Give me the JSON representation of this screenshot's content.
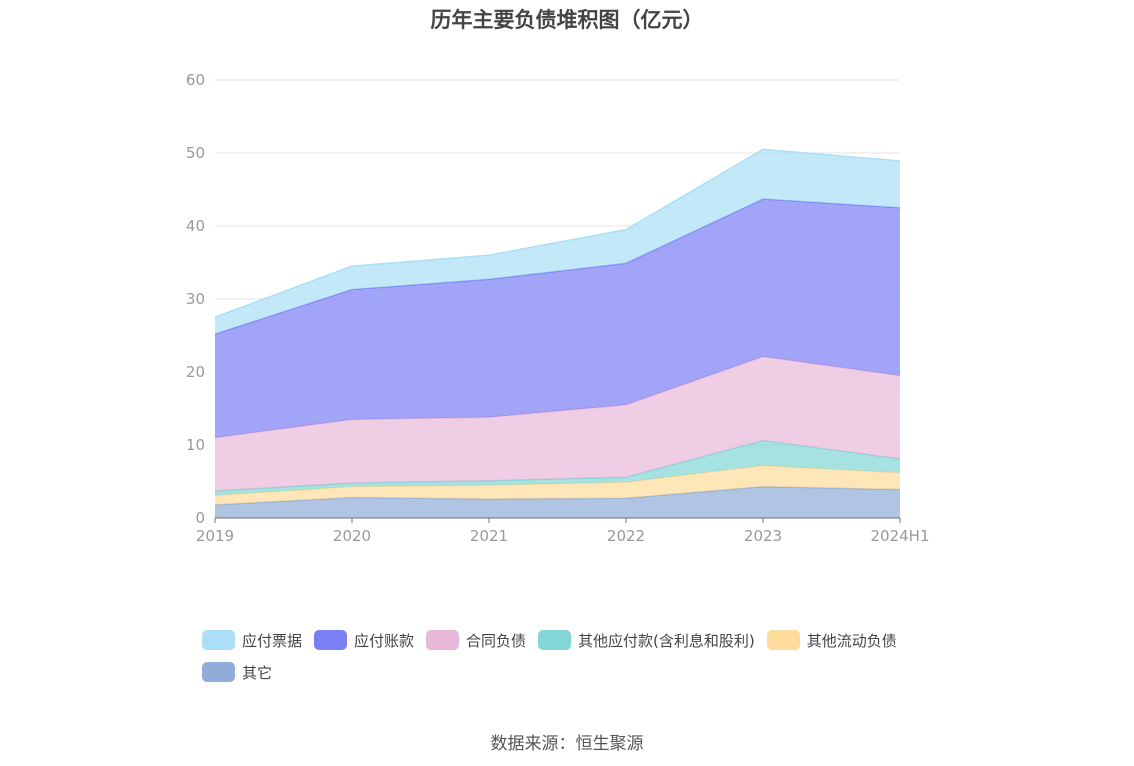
{
  "chart_data": {
    "type": "area",
    "stacked": true,
    "title": "历年主要负债堆积图（亿元）",
    "categories": [
      "2019",
      "2020",
      "2021",
      "2022",
      "2023",
      "2024H1"
    ],
    "ylim": [
      0,
      60
    ],
    "yticks": [
      0,
      10,
      20,
      30,
      40,
      50,
      60
    ],
    "grid": true,
    "legend_position": "bottom",
    "series": [
      {
        "name": "其它",
        "color": "#8fadd8",
        "values": [
          1.8,
          2.8,
          2.6,
          2.7,
          4.3,
          3.9
        ]
      },
      {
        "name": "其他流动负债",
        "color": "#fddb9a",
        "values": [
          1.3,
          1.5,
          1.9,
          2.2,
          2.9,
          2.3
        ]
      },
      {
        "name": "其他应付款(含利息和股利)",
        "color": "#82d6d6",
        "values": [
          0.6,
          0.5,
          0.6,
          0.7,
          3.4,
          1.9
        ]
      },
      {
        "name": "合同负债",
        "color": "#e8b8d8",
        "values": [
          7.3,
          8.7,
          8.7,
          9.9,
          11.5,
          11.4
        ]
      },
      {
        "name": "应付账款",
        "color": "#7b7ff4",
        "values": [
          14.2,
          17.8,
          18.9,
          19.4,
          21.6,
          23.0
        ]
      },
      {
        "name": "应付票据",
        "color": "#aadff7",
        "values": [
          2.3,
          3.2,
          3.3,
          4.6,
          6.8,
          6.4
        ]
      }
    ],
    "legend_order": [
      "应付票据",
      "应付账款",
      "合同负债",
      "其他应付款(含利息和股利)",
      "其他流动负债",
      "其它"
    ]
  },
  "source": "数据来源：恒生聚源"
}
